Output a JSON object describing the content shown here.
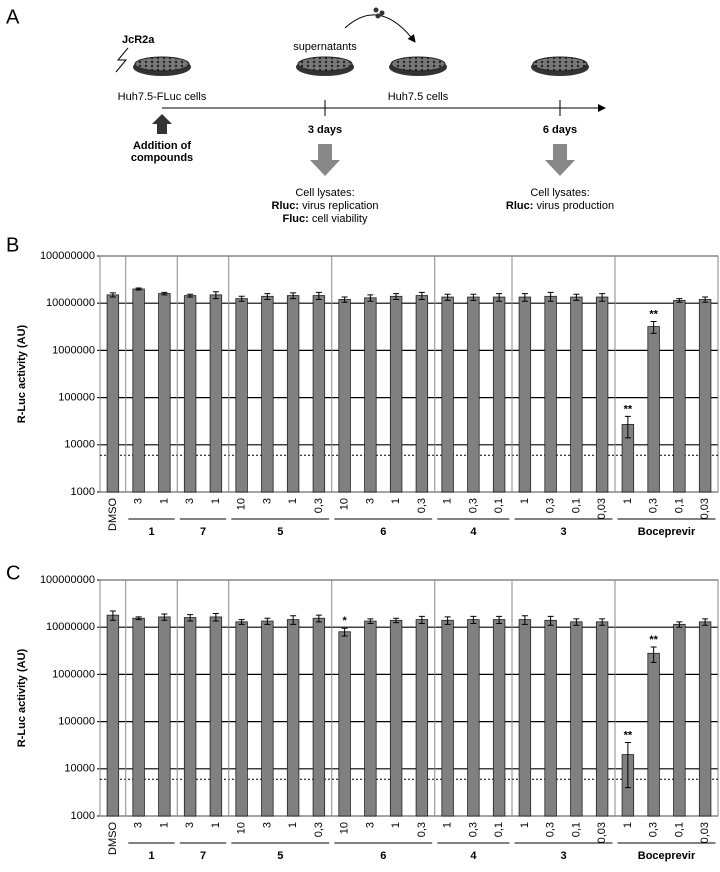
{
  "diagram": {
    "panel": "A",
    "virus": "JcR2a",
    "cells_1": "Huh7.5-FLuc cells",
    "transfer": "supernatants",
    "cells_2": "Huh7.5 cells",
    "time_1": "3 days",
    "time_2": "6 days",
    "addition": [
      "Addition of",
      "compounds"
    ],
    "readout_1": {
      "heading": "Cell lysates:",
      "lines": [
        {
          "label": "Rluc:",
          "text": "virus replication"
        },
        {
          "label": "Fluc:",
          "text": "cell viability"
        }
      ]
    },
    "readout_2": {
      "heading": "Cell lysates:",
      "lines": [
        {
          "label": "Rluc:",
          "text": "virus production"
        }
      ]
    }
  },
  "chart_data": [
    {
      "type": "bar",
      "panel": "B",
      "ylabel": "R-Luc activity (AU)",
      "log_scale": true,
      "grid": true,
      "color": "#808080",
      "categories": [
        "DMSO",
        "3",
        "1",
        "3",
        "1",
        "10",
        "3",
        "1",
        "0,3",
        "10",
        "3",
        "1",
        "0,3",
        "1",
        "0,3",
        "0,1",
        "1",
        "0,3",
        "0,1",
        "0,03",
        "1",
        "0,3",
        "0,1",
        "0,03"
      ],
      "category_groups": [
        null,
        "1",
        "1",
        "7",
        "7",
        "5",
        "5",
        "5",
        "5",
        "6",
        "6",
        "6",
        "6",
        "4",
        "4",
        "4",
        "3",
        "3",
        "3",
        "3",
        "Boceprevir",
        "Boceprevir",
        "Boceprevir",
        "Boceprevir"
      ],
      "values": [
        15000000,
        20000000,
        16000000,
        14500000,
        15000000,
        12500000,
        14000000,
        14500000,
        14500000,
        12000000,
        13000000,
        14000000,
        14500000,
        13500000,
        13500000,
        13500000,
        13500000,
        14000000,
        13500000,
        13500000,
        27000,
        3200000,
        11500000,
        12000000
      ],
      "errors": [
        1500000,
        1000000,
        1000000,
        1000000,
        2500000,
        1500000,
        2000000,
        2000000,
        2500000,
        1500000,
        2000000,
        2000000,
        2500000,
        2000000,
        2000000,
        2500000,
        2500000,
        3000000,
        2000000,
        2500000,
        13000,
        900000,
        1000000,
        1500000
      ],
      "significance": [
        null,
        null,
        null,
        null,
        null,
        null,
        null,
        null,
        null,
        null,
        null,
        null,
        null,
        null,
        null,
        null,
        null,
        null,
        null,
        null,
        "**",
        "**",
        null,
        null
      ],
      "reference_line": 6000,
      "ylim": [
        1000,
        100000000
      ],
      "yticks": [
        1000,
        10000,
        100000,
        1000000,
        10000000,
        100000000
      ]
    },
    {
      "type": "bar",
      "panel": "C",
      "ylabel": "R-Luc activity (AU)",
      "log_scale": true,
      "grid": true,
      "color": "#808080",
      "categories": [
        "DMSO",
        "3",
        "1",
        "3",
        "1",
        "10",
        "3",
        "1",
        "0,3",
        "10",
        "3",
        "1",
        "0,3",
        "1",
        "0,3",
        "0,1",
        "1",
        "0,3",
        "0,1",
        "0,03",
        "1",
        "0,3",
        "0,1",
        "0,03"
      ],
      "category_groups": [
        null,
        "1",
        "1",
        "7",
        "7",
        "5",
        "5",
        "5",
        "5",
        "6",
        "6",
        "6",
        "6",
        "4",
        "4",
        "4",
        "3",
        "3",
        "3",
        "3",
        "Boceprevir",
        "Boceprevir",
        "Boceprevir",
        "Boceprevir"
      ],
      "values": [
        18000000,
        15500000,
        16500000,
        16000000,
        16500000,
        13000000,
        13500000,
        14500000,
        15500000,
        8000000,
        13500000,
        14000000,
        14500000,
        14000000,
        14500000,
        14500000,
        14500000,
        14000000,
        13000000,
        13000000,
        20000,
        2800000,
        11500000,
        13000000
      ],
      "errors": [
        4000000,
        1000000,
        2500000,
        2500000,
        3000000,
        1500000,
        2000000,
        3000000,
        2500000,
        1500000,
        1500000,
        1500000,
        2500000,
        2500000,
        2500000,
        2500000,
        3000000,
        3000000,
        2000000,
        2000000,
        16000,
        1000000,
        1500000,
        2000000
      ],
      "significance": [
        null,
        null,
        null,
        null,
        null,
        null,
        null,
        null,
        null,
        "*",
        null,
        null,
        null,
        null,
        null,
        null,
        null,
        null,
        null,
        null,
        "**",
        "**",
        null,
        null
      ],
      "reference_line": 6000,
      "ylim": [
        1000,
        100000000
      ],
      "yticks": [
        1000,
        10000,
        100000,
        1000000,
        10000000,
        100000000
      ]
    }
  ]
}
